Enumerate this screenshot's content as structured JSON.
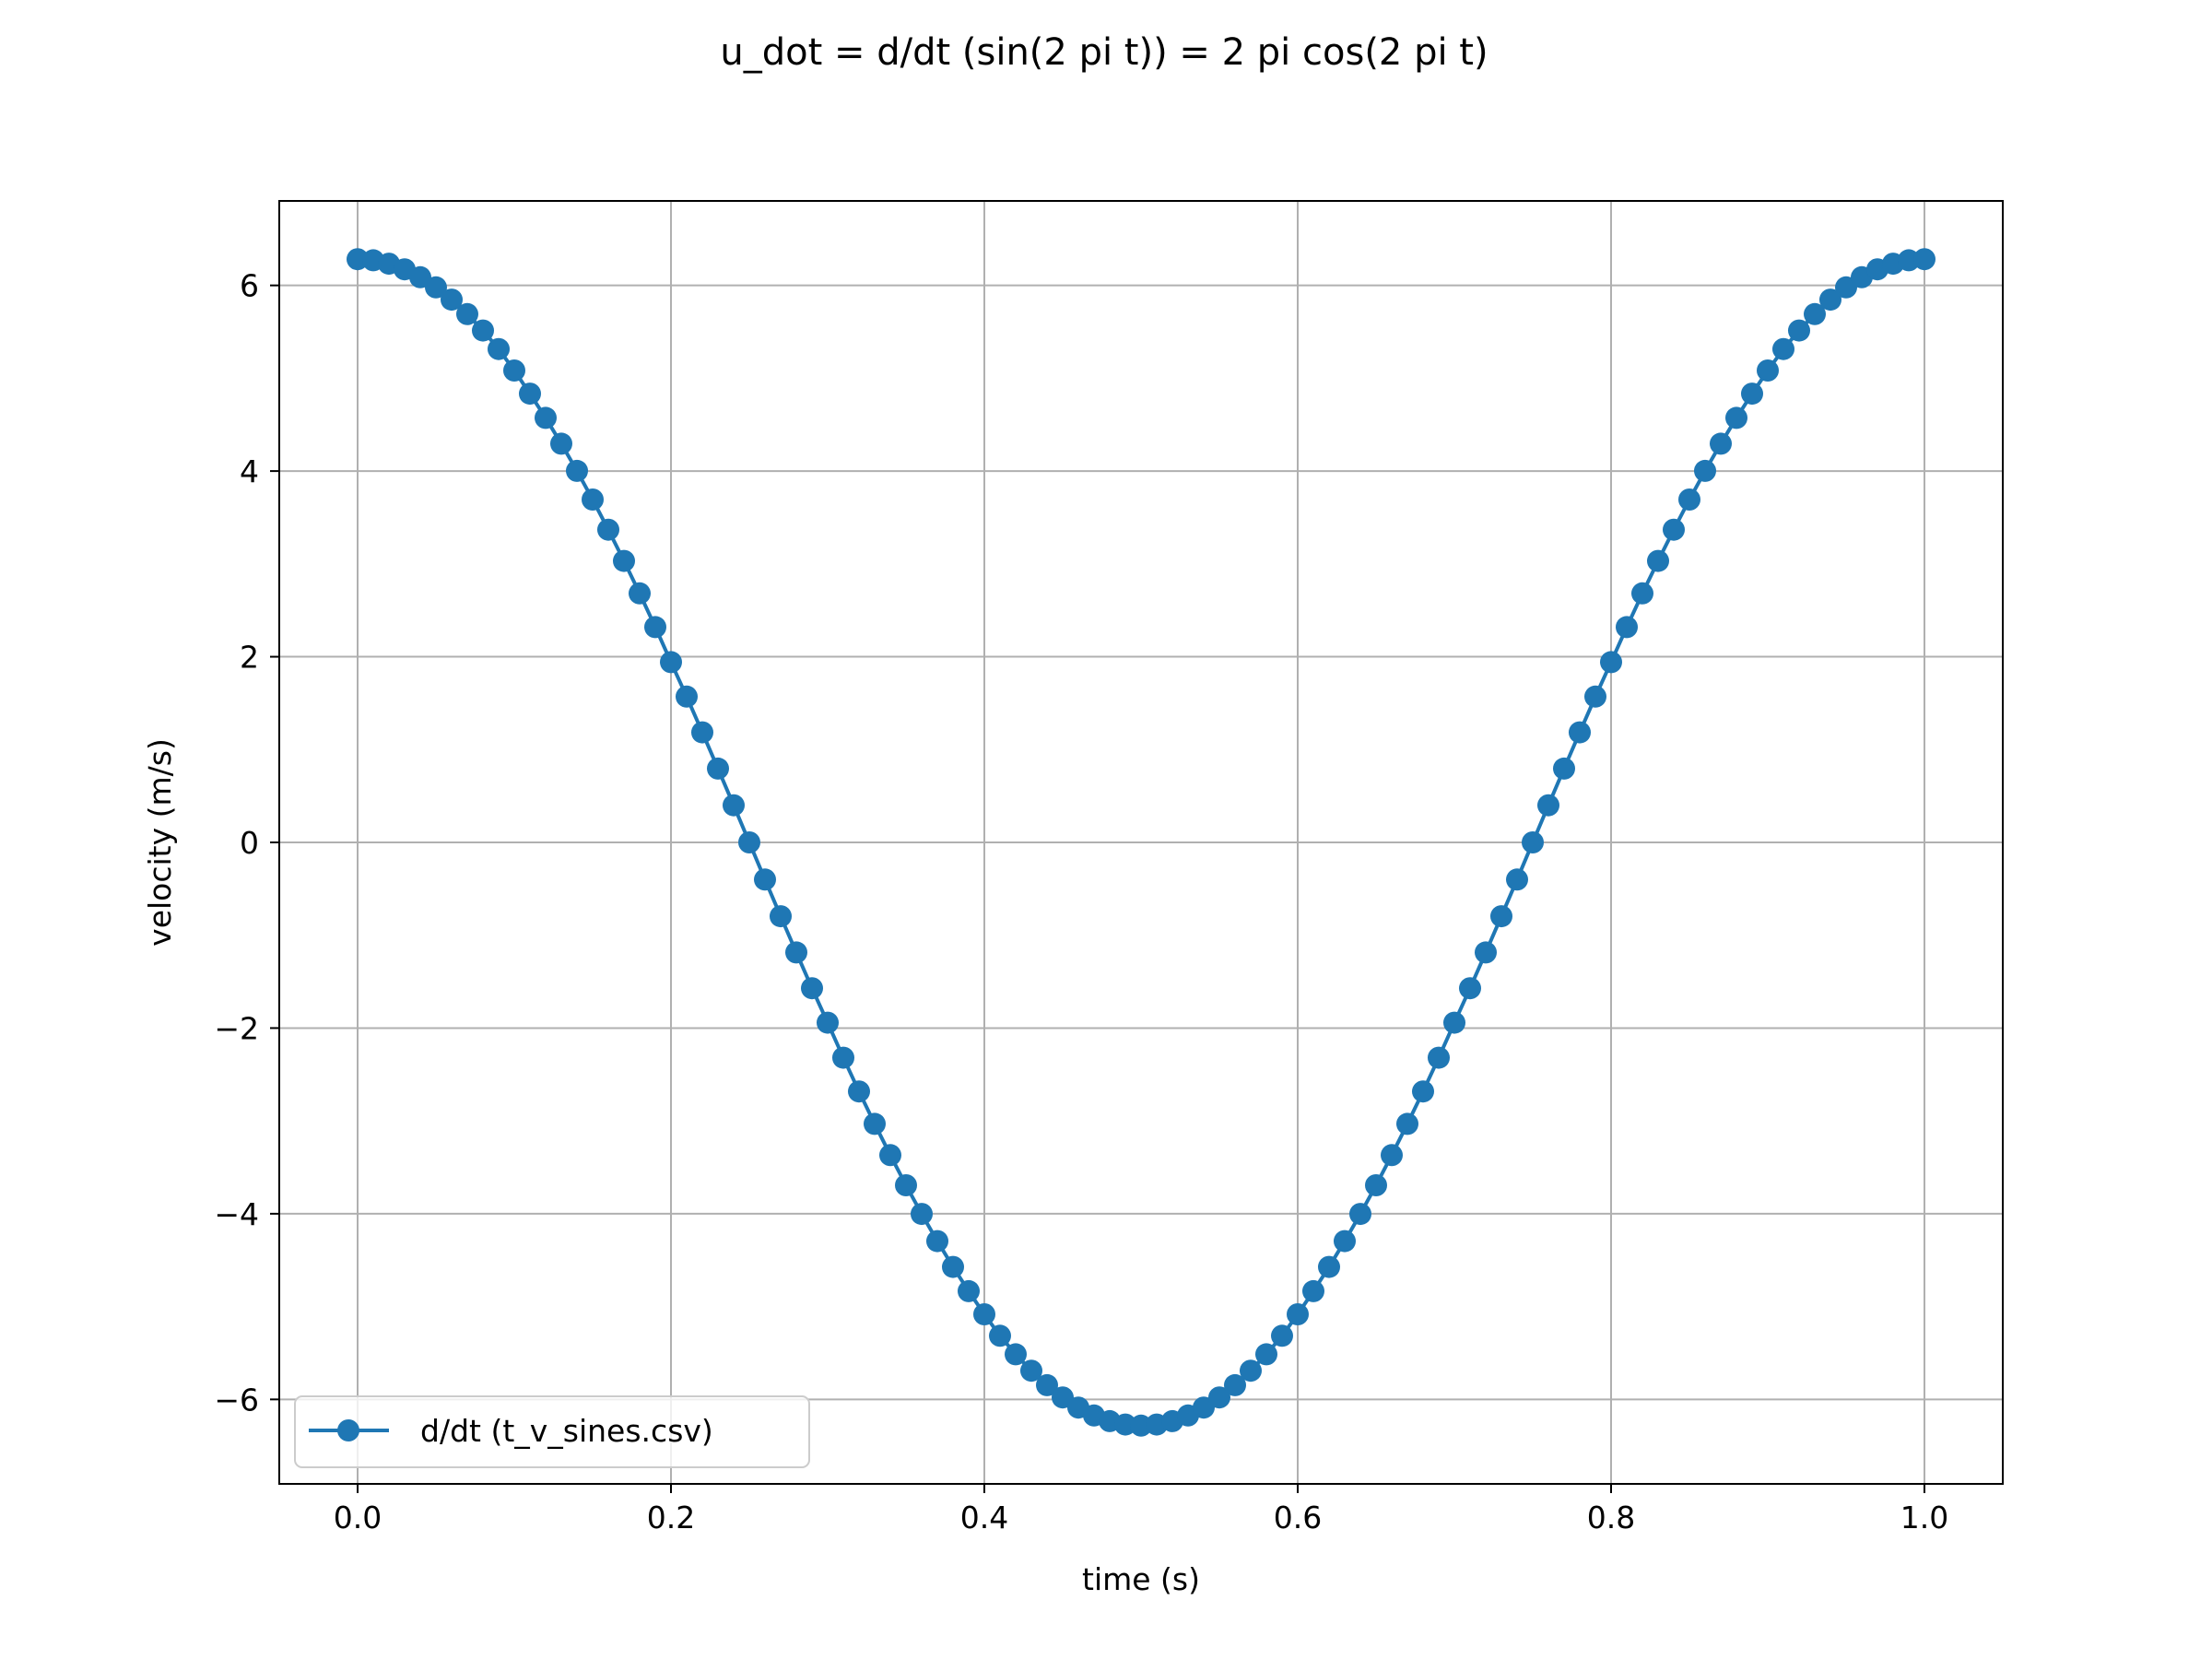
{
  "chart_data": {
    "type": "line",
    "title": "u_dot = d/dt (sin(2 pi t)) = 2 pi cos(2 pi t)",
    "xlabel": "time (s)",
    "ylabel": "velocity (m/s)",
    "xlim": [
      -0.05,
      1.05
    ],
    "ylim": [
      -6.91,
      6.91
    ],
    "x_ticks": [
      0.0,
      0.2,
      0.4,
      0.6,
      0.8,
      1.0
    ],
    "x_tick_labels": [
      "0.0",
      "0.2",
      "0.4",
      "0.6",
      "0.8",
      "1.0"
    ],
    "y_ticks": [
      -6,
      -4,
      -2,
      0,
      2,
      4,
      6
    ],
    "y_tick_labels": [
      "−6",
      "−4",
      "−2",
      "0",
      "2",
      "4",
      "6"
    ],
    "grid": true,
    "legend_position": "lower-left",
    "series": [
      {
        "name": "d/dt (t_v_sines.csv)",
        "color": "#1f77b4",
        "marker": "circle",
        "x": [
          0.0,
          0.01,
          0.02,
          0.03,
          0.04,
          0.05,
          0.06,
          0.07,
          0.08,
          0.09,
          0.1,
          0.11,
          0.12,
          0.13,
          0.14,
          0.15,
          0.16,
          0.17,
          0.18,
          0.19,
          0.2,
          0.21,
          0.22,
          0.23,
          0.24,
          0.25,
          0.26,
          0.27,
          0.28,
          0.29,
          0.3,
          0.31,
          0.32,
          0.33,
          0.34,
          0.35,
          0.36,
          0.37,
          0.38,
          0.39,
          0.4,
          0.41,
          0.42,
          0.43,
          0.44,
          0.45,
          0.46,
          0.47,
          0.48,
          0.49,
          0.5,
          0.51,
          0.52,
          0.53,
          0.54,
          0.55,
          0.56,
          0.57,
          0.58,
          0.59,
          0.6,
          0.61,
          0.62,
          0.63,
          0.64,
          0.65,
          0.66,
          0.67,
          0.68,
          0.69,
          0.7,
          0.71,
          0.72,
          0.73,
          0.74,
          0.75,
          0.76,
          0.77,
          0.78,
          0.79,
          0.8,
          0.81,
          0.82,
          0.83,
          0.84,
          0.85,
          0.86,
          0.87,
          0.88,
          0.89,
          0.9,
          0.91,
          0.92,
          0.93,
          0.94,
          0.95,
          0.96,
          0.97,
          0.98,
          0.99,
          1.0
        ],
        "y": [
          6.283,
          6.271,
          6.234,
          6.173,
          6.088,
          5.979,
          5.847,
          5.691,
          5.514,
          5.315,
          5.083,
          4.834,
          4.573,
          4.295,
          4.002,
          3.693,
          3.369,
          3.032,
          2.683,
          2.319,
          1.942,
          1.571,
          1.185,
          0.795,
          0.4,
          0.0,
          -0.4,
          -0.795,
          -1.185,
          -1.571,
          -1.942,
          -2.319,
          -2.683,
          -3.032,
          -3.369,
          -3.693,
          -4.002,
          -4.295,
          -4.573,
          -4.834,
          -5.083,
          -5.315,
          -5.514,
          -5.691,
          -5.847,
          -5.979,
          -6.088,
          -6.173,
          -6.234,
          -6.271,
          -6.283,
          -6.271,
          -6.234,
          -6.173,
          -6.088,
          -5.979,
          -5.847,
          -5.691,
          -5.514,
          -5.315,
          -5.083,
          -4.834,
          -4.573,
          -4.295,
          -4.002,
          -3.693,
          -3.369,
          -3.032,
          -2.683,
          -2.319,
          -1.942,
          -1.571,
          -1.185,
          -0.795,
          -0.4,
          0.0,
          0.4,
          0.795,
          1.185,
          1.571,
          1.942,
          2.319,
          2.683,
          3.032,
          3.369,
          3.693,
          4.002,
          4.295,
          4.573,
          4.834,
          5.083,
          5.315,
          5.514,
          5.691,
          5.847,
          5.979,
          6.088,
          6.173,
          6.234,
          6.271,
          6.283
        ]
      }
    ]
  }
}
